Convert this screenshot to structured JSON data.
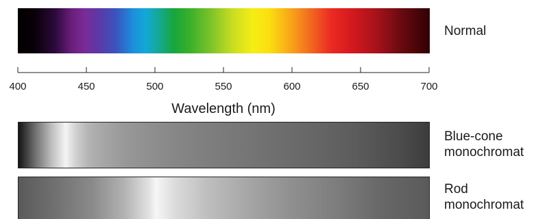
{
  "rows": [
    {
      "label_lines": [
        "Normal"
      ]
    },
    {
      "label_lines": [
        "Blue-cone",
        "monochromat"
      ]
    },
    {
      "label_lines": [
        "Rod",
        "monochromat"
      ]
    }
  ],
  "axis": {
    "title": "Wavelength (nm)",
    "min": 400,
    "max": 700,
    "ticks": [
      "400",
      "450",
      "500",
      "550",
      "600",
      "650",
      "700"
    ]
  }
}
